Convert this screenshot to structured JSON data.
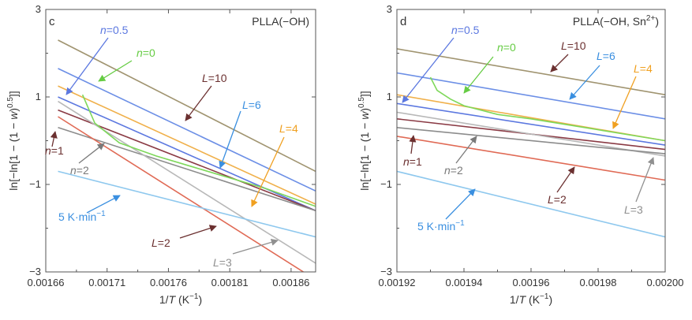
{
  "chart_data": [
    {
      "type": "line",
      "panel": "c",
      "title": "PLLA(−OH)",
      "xlabel": "1/T (K−1)",
      "ylabel": "ln[−ln[1 − (1 − w)0.5]]",
      "xlim": [
        0.00166,
        0.00188
      ],
      "ylim": [
        -3,
        3
      ],
      "xticks": [
        "0.00166",
        "0.00171",
        "0.00176",
        "0.00181",
        "0.00186"
      ],
      "yticks": [
        "3",
        "1",
        "−1",
        "−3"
      ],
      "grid": false,
      "series": [
        {
          "name": "L=10",
          "color": "#a09470",
          "x": [
            0.00167,
            0.00188
          ],
          "y": [
            2.3,
            -0.7
          ]
        },
        {
          "name": "L=6",
          "color": "#6c8fe6",
          "x": [
            0.00167,
            0.00188
          ],
          "y": [
            1.65,
            -1.15
          ]
        },
        {
          "name": "L=4",
          "color": "#f0b04a",
          "x": [
            0.00167,
            0.00188
          ],
          "y": [
            1.25,
            -1.45
          ]
        },
        {
          "name": "n=0.5",
          "color": "#5c78e0",
          "x": [
            0.00167,
            0.00188
          ],
          "y": [
            1.0,
            -1.6
          ]
        },
        {
          "name": "n=1",
          "color": "#8a3a44",
          "x": [
            0.00167,
            0.00188
          ],
          "y": [
            0.7,
            -1.6
          ]
        },
        {
          "name": "n=2",
          "color": "#8c8c8c",
          "x": [
            0.00167,
            0.00188
          ],
          "y": [
            0.3,
            -1.6
          ]
        },
        {
          "name": "L=3",
          "color": "#b8b8b8",
          "x": [
            0.00167,
            0.00188
          ],
          "y": [
            0.9,
            -2.8
          ]
        },
        {
          "name": "L=2",
          "color": "#e06a55",
          "x": [
            0.00167,
            0.00187
          ],
          "y": [
            0.55,
            -3.0
          ]
        },
        {
          "name": "5 K·min−1",
          "color": "#8ec8ee",
          "x": [
            0.00167,
            0.00188
          ],
          "y": [
            -0.7,
            -2.2
          ]
        },
        {
          "name": "n=0",
          "color": "#7ed85a",
          "x": [
            0.00169,
            0.0017,
            0.00172,
            0.00175,
            0.00178,
            0.00181,
            0.00184,
            0.00188
          ],
          "y": [
            1.05,
            0.4,
            -0.05,
            -0.35,
            -0.6,
            -0.85,
            -1.1,
            -1.5
          ]
        }
      ],
      "annotations": [
        {
          "text": "n=0.5",
          "color": "#5c78e0"
        },
        {
          "text": "n=0",
          "color": "#66cc44"
        },
        {
          "text": "L=10",
          "color": "#6b3030"
        },
        {
          "text": "L=6",
          "color": "#3a8fe0"
        },
        {
          "text": "L=4",
          "color": "#f0a020"
        },
        {
          "text": "n=1",
          "color": "#6b3030"
        },
        {
          "text": "n=2",
          "color": "#7a7a7a"
        },
        {
          "text": "5 K·min−1",
          "color": "#3a8fe0"
        },
        {
          "text": "L=2",
          "color": "#6b3030"
        },
        {
          "text": "L=3",
          "color": "#909090"
        }
      ]
    },
    {
      "type": "line",
      "panel": "d",
      "title": "PLLA(−OH, Sn2+)",
      "xlabel": "1/T (K−1)",
      "ylabel": "ln[−ln[1 − (1 − w)0.5]]",
      "xlim": [
        0.00192,
        0.002
      ],
      "ylim": [
        -3,
        3
      ],
      "xticks": [
        "0.00192",
        "0.00194",
        "0.00196",
        "0.00198",
        "0.00200"
      ],
      "yticks": [
        "3",
        "1",
        "−1",
        "−3"
      ],
      "grid": false,
      "series": [
        {
          "name": "L=10",
          "color": "#a09470",
          "x": [
            0.00192,
            0.002
          ],
          "y": [
            2.1,
            1.05
          ]
        },
        {
          "name": "L=6",
          "color": "#6c8fe6",
          "x": [
            0.00192,
            0.002
          ],
          "y": [
            1.55,
            0.5
          ]
        },
        {
          "name": "L=4",
          "color": "#f0b04a",
          "x": [
            0.00192,
            0.002
          ],
          "y": [
            1.05,
            0.0
          ]
        },
        {
          "name": "n=0.5",
          "color": "#5c78e0",
          "x": [
            0.00192,
            0.002
          ],
          "y": [
            0.85,
            -0.1
          ]
        },
        {
          "name": "n=1",
          "color": "#8a3a44",
          "x": [
            0.00192,
            0.002
          ],
          "y": [
            0.5,
            -0.2
          ]
        },
        {
          "name": "L=3",
          "color": "#b8b8b8",
          "x": [
            0.00192,
            0.002
          ],
          "y": [
            0.65,
            -0.35
          ]
        },
        {
          "name": "n=2",
          "color": "#8c8c8c",
          "x": [
            0.00192,
            0.002
          ],
          "y": [
            0.3,
            -0.3
          ]
        },
        {
          "name": "L=2",
          "color": "#e06a55",
          "x": [
            0.00192,
            0.002
          ],
          "y": [
            0.1,
            -0.9
          ]
        },
        {
          "name": "5 K·min−1",
          "color": "#8ec8ee",
          "x": [
            0.00192,
            0.002
          ],
          "y": [
            -0.7,
            -2.2
          ]
        },
        {
          "name": "n=0",
          "color": "#7ed85a",
          "x": [
            0.00193,
            0.001932,
            0.001936,
            0.00194,
            0.00195,
            0.00196,
            0.00198,
            0.002
          ],
          "y": [
            1.45,
            1.15,
            0.95,
            0.8,
            0.6,
            0.5,
            0.25,
            0.0
          ]
        }
      ],
      "annotations": [
        {
          "text": "n=0.5",
          "color": "#5c78e0"
        },
        {
          "text": "n=0",
          "color": "#66cc44"
        },
        {
          "text": "L=10",
          "color": "#6b3030"
        },
        {
          "text": "L=6",
          "color": "#3a8fe0"
        },
        {
          "text": "L=4",
          "color": "#f0a020"
        },
        {
          "text": "n=1",
          "color": "#6b3030"
        },
        {
          "text": "n=2",
          "color": "#7a7a7a"
        },
        {
          "text": "L=2",
          "color": "#6b3030"
        },
        {
          "text": "L=3",
          "color": "#909090"
        },
        {
          "text": "5 K·min−1",
          "color": "#3a8fe0"
        }
      ]
    }
  ]
}
